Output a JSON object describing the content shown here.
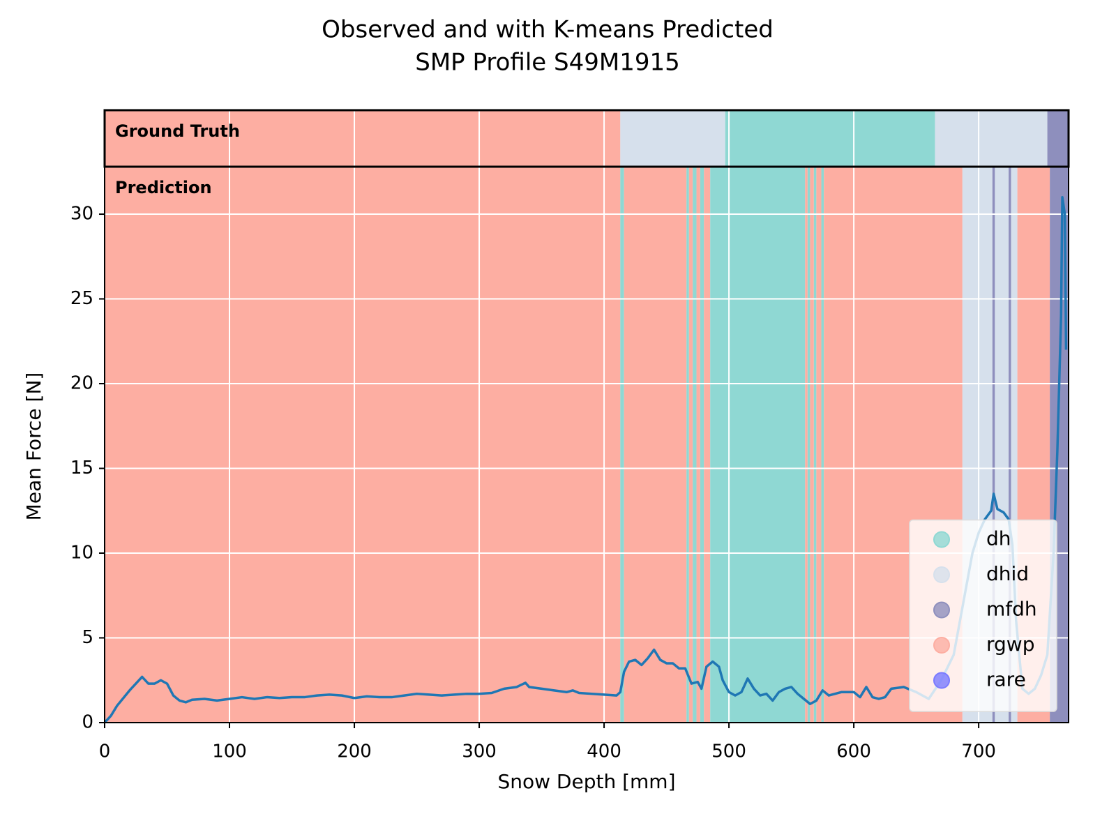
{
  "chart_data": {
    "type": "line",
    "title": "Observed and with K-means Predicted",
    "subtitle": "SMP Profile S49M1915",
    "x_label": "Snow Depth [mm]",
    "y_label": "Mean Force [N]",
    "xlim": [
      0,
      772
    ],
    "ylim": [
      0,
      32.8
    ],
    "xticks": [
      0,
      100,
      200,
      300,
      400,
      500,
      600,
      700
    ],
    "yticks": [
      0,
      5,
      10,
      15,
      20,
      25,
      30
    ],
    "grid": true,
    "color": "#1f77b4",
    "x": [
      0,
      5,
      10,
      20,
      30,
      35,
      40,
      45,
      50,
      55,
      60,
      65,
      70,
      80,
      90,
      100,
      110,
      120,
      130,
      140,
      150,
      160,
      170,
      180,
      190,
      200,
      210,
      220,
      230,
      240,
      250,
      260,
      270,
      280,
      290,
      300,
      310,
      320,
      330,
      337,
      340,
      350,
      360,
      370,
      375,
      380,
      390,
      400,
      410,
      413,
      416,
      420,
      425,
      430,
      435,
      440,
      445,
      450,
      455,
      460,
      465,
      470,
      475,
      478,
      482,
      487,
      492,
      495,
      500,
      505,
      510,
      515,
      520,
      525,
      530,
      535,
      540,
      545,
      550,
      555,
      560,
      565,
      570,
      575,
      580,
      590,
      600,
      605,
      610,
      615,
      620,
      625,
      630,
      640,
      650,
      660,
      670,
      680,
      690,
      695,
      700,
      705,
      710,
      712,
      715,
      720,
      724,
      727,
      730,
      735,
      740,
      745,
      750,
      755,
      760,
      763,
      766,
      767,
      769,
      770
    ],
    "values": [
      0,
      0.4,
      1.0,
      1.9,
      2.7,
      2.3,
      2.3,
      2.5,
      2.3,
      1.6,
      1.3,
      1.2,
      1.35,
      1.4,
      1.3,
      1.4,
      1.5,
      1.4,
      1.5,
      1.45,
      1.5,
      1.5,
      1.6,
      1.65,
      1.6,
      1.45,
      1.55,
      1.5,
      1.5,
      1.6,
      1.7,
      1.65,
      1.6,
      1.65,
      1.7,
      1.7,
      1.75,
      2.0,
      2.1,
      2.35,
      2.1,
      2.0,
      1.9,
      1.8,
      1.9,
      1.75,
      1.7,
      1.65,
      1.6,
      1.8,
      3.0,
      3.6,
      3.7,
      3.4,
      3.8,
      4.3,
      3.7,
      3.5,
      3.5,
      3.2,
      3.2,
      2.3,
      2.4,
      2.0,
      3.3,
      3.6,
      3.3,
      2.5,
      1.8,
      1.6,
      1.8,
      2.6,
      2.0,
      1.6,
      1.7,
      1.3,
      1.8,
      2.0,
      2.1,
      1.7,
      1.4,
      1.1,
      1.3,
      1.9,
      1.6,
      1.8,
      1.8,
      1.5,
      2.1,
      1.5,
      1.4,
      1.5,
      2.0,
      2.1,
      1.8,
      1.4,
      2.5,
      4.0,
      8.0,
      10.0,
      11.2,
      12.0,
      12.5,
      13.5,
      12.6,
      12.4,
      12.0,
      10.5,
      6.0,
      2.0,
      1.7,
      2.0,
      2.8,
      4.0,
      10.0,
      16.0,
      24.0,
      31.0,
      30.0,
      22.0
    ],
    "legend": "lower right",
    "classes": [
      {
        "name": "dh",
        "color": "#8fd8d3"
      },
      {
        "name": "dhid",
        "color": "#d6e0ec"
      },
      {
        "name": "mfdh",
        "color": "#8e8fbd"
      },
      {
        "name": "rgwp",
        "color": "#fdaea2"
      },
      {
        "name": "rare",
        "color": "#7a7aff"
      }
    ],
    "panels": [
      {
        "label": "Ground Truth",
        "segments": [
          {
            "class": "rgwp",
            "start": 0,
            "end": 413
          },
          {
            "class": "dhid",
            "start": 413,
            "end": 497
          },
          {
            "class": "dh",
            "start": 497,
            "end": 665
          },
          {
            "class": "dhid",
            "start": 665,
            "end": 755
          },
          {
            "class": "mfdh",
            "start": 755,
            "end": 772
          }
        ]
      },
      {
        "label": "Prediction",
        "segments": [
          {
            "class": "rgwp",
            "start": 0,
            "end": 413
          },
          {
            "class": "dh",
            "start": 413,
            "end": 416
          },
          {
            "class": "rgwp",
            "start": 416,
            "end": 466
          },
          {
            "class": "dh",
            "start": 466,
            "end": 468
          },
          {
            "class": "rgwp",
            "start": 468,
            "end": 471
          },
          {
            "class": "dh",
            "start": 471,
            "end": 474
          },
          {
            "class": "rgwp",
            "start": 474,
            "end": 477
          },
          {
            "class": "dh",
            "start": 477,
            "end": 480
          },
          {
            "class": "rgwp",
            "start": 480,
            "end": 485
          },
          {
            "class": "dh",
            "start": 485,
            "end": 561
          },
          {
            "class": "rgwp",
            "start": 561,
            "end": 563
          },
          {
            "class": "dh",
            "start": 563,
            "end": 565
          },
          {
            "class": "rgwp",
            "start": 565,
            "end": 568
          },
          {
            "class": "dh",
            "start": 568,
            "end": 570
          },
          {
            "class": "rgwp",
            "start": 570,
            "end": 574
          },
          {
            "class": "dh",
            "start": 574,
            "end": 576
          },
          {
            "class": "rgwp",
            "start": 576,
            "end": 687
          },
          {
            "class": "dhid",
            "start": 687,
            "end": 711
          },
          {
            "class": "mfdh",
            "start": 711,
            "end": 713
          },
          {
            "class": "dhid",
            "start": 713,
            "end": 724
          },
          {
            "class": "mfdh",
            "start": 724,
            "end": 726
          },
          {
            "class": "dhid",
            "start": 726,
            "end": 731
          },
          {
            "class": "rgwp",
            "start": 731,
            "end": 757
          },
          {
            "class": "mfdh",
            "start": 757,
            "end": 772
          }
        ]
      }
    ]
  }
}
